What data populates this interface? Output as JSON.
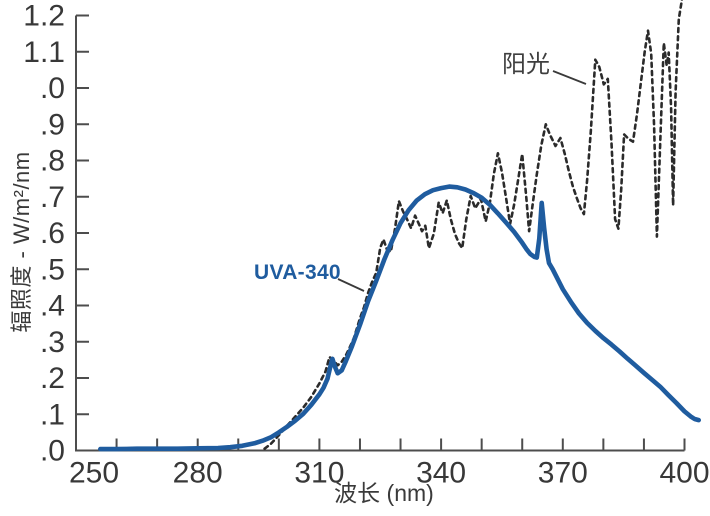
{
  "page": {
    "background": "#ffffff"
  },
  "colors": {
    "axis": "#4d4d4d",
    "tick_label": "#383838",
    "uva": "#1f5c9f",
    "sun": "#2b2b2b",
    "annotation_text": "#3f3f3f",
    "callout_line": "#3a3a3a"
  },
  "chart_data": {
    "type": "line",
    "title": "",
    "xlabel": "波长 (nm)",
    "ylabel": "辐照度 - W/m²/nm",
    "xlim": [
      250,
      400
    ],
    "ylim": [
      0,
      1.2
    ],
    "grid": false,
    "legend": "inline-annotations",
    "x_minor_tick_step": 10,
    "x_major_ticks": [
      {
        "value": 250,
        "label": "250"
      },
      {
        "value": 280,
        "label": "280"
      },
      {
        "value": 310,
        "label": "310"
      },
      {
        "value": 340,
        "label": "340"
      },
      {
        "value": 370,
        "label": "370"
      },
      {
        "value": 400,
        "label": "400"
      }
    ],
    "y_ticks": [
      {
        "value": 1.2,
        "label": "1.2"
      },
      {
        "value": 1.1,
        "label": "1.1"
      },
      {
        "value": 1.0,
        "label": ".0"
      },
      {
        "value": 0.9,
        "label": ".9"
      },
      {
        "value": 0.8,
        "label": ".8"
      },
      {
        "value": 0.7,
        "label": ".7"
      },
      {
        "value": 0.6,
        "label": ".6"
      },
      {
        "value": 0.5,
        "label": ".5"
      },
      {
        "value": 0.4,
        "label": ".4"
      },
      {
        "value": 0.3,
        "label": ".3"
      },
      {
        "value": 0.2,
        "label": ".2"
      },
      {
        "value": 0.1,
        "label": ".1"
      },
      {
        "value": 0.0,
        "label": ".0"
      }
    ],
    "annotations": {
      "sun": {
        "text": "阳光"
      },
      "uva": {
        "text": "UVA-340"
      }
    },
    "series": [
      {
        "id": "sunlight",
        "name": "阳光",
        "style": "dashed",
        "color": "#2b2b2b",
        "x_unit": "nm",
        "y_unit": "W/m²/nm",
        "points": [
          [
            296.5,
            0.005
          ],
          [
            298,
            0.018
          ],
          [
            300,
            0.042
          ],
          [
            302,
            0.068
          ],
          [
            304,
            0.093
          ],
          [
            306,
            0.118
          ],
          [
            308,
            0.148
          ],
          [
            310,
            0.185
          ],
          [
            311.5,
            0.218
          ],
          [
            312.5,
            0.258
          ],
          [
            313.5,
            0.248
          ],
          [
            314.5,
            0.235
          ],
          [
            315.5,
            0.245
          ],
          [
            316.5,
            0.262
          ],
          [
            317.5,
            0.285
          ],
          [
            318.5,
            0.31
          ],
          [
            320,
            0.365
          ],
          [
            321,
            0.395
          ],
          [
            322,
            0.435
          ],
          [
            323,
            0.465
          ],
          [
            324,
            0.49
          ],
          [
            325,
            0.56
          ],
          [
            325.8,
            0.582
          ],
          [
            326.6,
            0.556
          ],
          [
            327.6,
            0.548
          ],
          [
            328.6,
            0.61
          ],
          [
            329.6,
            0.688
          ],
          [
            330.6,
            0.66
          ],
          [
            331.6,
            0.638
          ],
          [
            332.6,
            0.613
          ],
          [
            333.6,
            0.648
          ],
          [
            334.6,
            0.623
          ],
          [
            335.3,
            0.605
          ],
          [
            336.1,
            0.62
          ],
          [
            337,
            0.558
          ],
          [
            338.2,
            0.598
          ],
          [
            339.4,
            0.684
          ],
          [
            340.4,
            0.655
          ],
          [
            341.4,
            0.69
          ],
          [
            342.4,
            0.638
          ],
          [
            343.4,
            0.598
          ],
          [
            344.4,
            0.572
          ],
          [
            345.2,
            0.558
          ],
          [
            346.2,
            0.638
          ],
          [
            347.3,
            0.702
          ],
          [
            348.4,
            0.668
          ],
          [
            349.8,
            0.694
          ],
          [
            351,
            0.632
          ],
          [
            352,
            0.682
          ],
          [
            353,
            0.762
          ],
          [
            354,
            0.82
          ],
          [
            355,
            0.768
          ],
          [
            356,
            0.698
          ],
          [
            357,
            0.625
          ],
          [
            358,
            0.678
          ],
          [
            359,
            0.748
          ],
          [
            360,
            0.818
          ],
          [
            361,
            0.698
          ],
          [
            361.7,
            0.605
          ],
          [
            362.6,
            0.682
          ],
          [
            363.6,
            0.762
          ],
          [
            364.7,
            0.842
          ],
          [
            365.8,
            0.9
          ],
          [
            366.8,
            0.872
          ],
          [
            368.2,
            0.84
          ],
          [
            369.4,
            0.862
          ],
          [
            370.5,
            0.818
          ],
          [
            371.5,
            0.77
          ],
          [
            372.5,
            0.728
          ],
          [
            373.5,
            0.695
          ],
          [
            374.4,
            0.668
          ],
          [
            375.2,
            0.652
          ],
          [
            376,
            0.745
          ],
          [
            376.9,
            0.88
          ],
          [
            378,
            1.078
          ],
          [
            379,
            1.058
          ],
          [
            380.1,
            1.01
          ],
          [
            381.1,
            1.025
          ],
          [
            382,
            0.848
          ],
          [
            382.9,
            0.638
          ],
          [
            383.7,
            0.612
          ],
          [
            384.4,
            0.72
          ],
          [
            385.1,
            0.872
          ],
          [
            386.2,
            0.86
          ],
          [
            387.3,
            0.852
          ],
          [
            388.3,
            0.928
          ],
          [
            389.3,
            1.02
          ],
          [
            390.2,
            1.1
          ],
          [
            391,
            1.158
          ],
          [
            391.8,
            1.095
          ],
          [
            392.5,
            0.895
          ],
          [
            393.2,
            0.59
          ],
          [
            394,
            0.848
          ],
          [
            394.9,
            1.124
          ],
          [
            395.6,
            1.062
          ],
          [
            396.1,
            1.098
          ],
          [
            396.7,
            0.945
          ],
          [
            397.2,
            0.676
          ],
          [
            397.8,
            0.99
          ],
          [
            398.6,
            1.19
          ],
          [
            399.3,
            1.24
          ],
          [
            399.9,
            1.3
          ]
        ]
      },
      {
        "id": "uva340",
        "name": "UVA-340",
        "style": "solid",
        "color": "#1f5c9f",
        "x_unit": "nm",
        "y_unit": "W/m²/nm",
        "points": [
          [
            256,
            0.004
          ],
          [
            260,
            0.004
          ],
          [
            265,
            0.005
          ],
          [
            270,
            0.005
          ],
          [
            275,
            0.005
          ],
          [
            280,
            0.006
          ],
          [
            285,
            0.007
          ],
          [
            288,
            0.009
          ],
          [
            291,
            0.013
          ],
          [
            294,
            0.02
          ],
          [
            296,
            0.027
          ],
          [
            298,
            0.036
          ],
          [
            300,
            0.05
          ],
          [
            302,
            0.065
          ],
          [
            304,
            0.082
          ],
          [
            306,
            0.101
          ],
          [
            308,
            0.126
          ],
          [
            310,
            0.155
          ],
          [
            311,
            0.173
          ],
          [
            312,
            0.198
          ],
          [
            312.7,
            0.232
          ],
          [
            313.2,
            0.253
          ],
          [
            313.8,
            0.232
          ],
          [
            314.5,
            0.213
          ],
          [
            315.5,
            0.221
          ],
          [
            316.5,
            0.246
          ],
          [
            318,
            0.287
          ],
          [
            320,
            0.347
          ],
          [
            322,
            0.412
          ],
          [
            324,
            0.468
          ],
          [
            326,
            0.527
          ],
          [
            328,
            0.58
          ],
          [
            330,
            0.627
          ],
          [
            332,
            0.663
          ],
          [
            334,
            0.69
          ],
          [
            336,
            0.707
          ],
          [
            338,
            0.718
          ],
          [
            340,
            0.724
          ],
          [
            342,
            0.728
          ],
          [
            344,
            0.726
          ],
          [
            346,
            0.72
          ],
          [
            348,
            0.71
          ],
          [
            350,
            0.697
          ],
          [
            352,
            0.678
          ],
          [
            354,
            0.654
          ],
          [
            356,
            0.629
          ],
          [
            358,
            0.603
          ],
          [
            360,
            0.573
          ],
          [
            361,
            0.556
          ],
          [
            362,
            0.542
          ],
          [
            363,
            0.534
          ],
          [
            363.6,
            0.532
          ],
          [
            364.2,
            0.585
          ],
          [
            364.8,
            0.683
          ],
          [
            365.4,
            0.615
          ],
          [
            366,
            0.555
          ],
          [
            366.6,
            0.517
          ],
          [
            367.5,
            0.5
          ],
          [
            368.5,
            0.478
          ],
          [
            370,
            0.445
          ],
          [
            372,
            0.41
          ],
          [
            374,
            0.378
          ],
          [
            376,
            0.352
          ],
          [
            378,
            0.33
          ],
          [
            380,
            0.31
          ],
          [
            382,
            0.292
          ],
          [
            384,
            0.273
          ],
          [
            386,
            0.253
          ],
          [
            388,
            0.234
          ],
          [
            390,
            0.214
          ],
          [
            392,
            0.195
          ],
          [
            394,
            0.176
          ],
          [
            396,
            0.153
          ],
          [
            398,
            0.131
          ],
          [
            400,
            0.108
          ],
          [
            401.5,
            0.094
          ],
          [
            402.5,
            0.087
          ],
          [
            403.5,
            0.084
          ]
        ]
      }
    ]
  }
}
